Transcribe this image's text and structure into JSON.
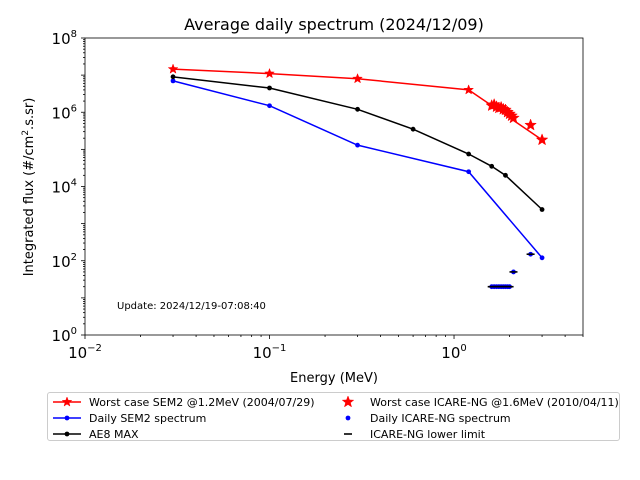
{
  "chart_data": {
    "type": "line",
    "title": "Average daily spectrum (2024/12/09)",
    "xlabel": "Energy (MeV)",
    "ylabel_base": "Integrated flux (#/cm",
    "ylabel_sup": "2",
    "ylabel_tail": ".s.sr)",
    "x_scale": "log",
    "y_scale": "log",
    "xlim": [
      0.01,
      5
    ],
    "ylim": [
      1,
      100000000
    ],
    "x_ticks": [
      {
        "value": 0.01,
        "base": "10",
        "exp": "−2"
      },
      {
        "value": 0.1,
        "base": "10",
        "exp": "−1"
      },
      {
        "value": 1,
        "base": "10",
        "exp": "0"
      }
    ],
    "y_ticks": [
      {
        "value": 1,
        "base": "10",
        "exp": "0"
      },
      {
        "value": 100,
        "base": "10",
        "exp": "2"
      },
      {
        "value": 10000,
        "base": "10",
        "exp": "4"
      },
      {
        "value": 1000000,
        "base": "10",
        "exp": "6"
      },
      {
        "value": 100000000,
        "base": "10",
        "exp": "8"
      }
    ],
    "annotation": "Update: 2024/12/19-07:08:40",
    "legend_position": "below",
    "series": [
      {
        "name": "Worst case SEM2 @1.2MeV (2004/07/29)",
        "color": "#ff0000",
        "marker": "star",
        "line": true,
        "points": [
          [
            0.03,
            14500000
          ],
          [
            0.1,
            11000000
          ],
          [
            0.3,
            8000000
          ],
          [
            1.2,
            4000000
          ],
          [
            3.0,
            180000
          ]
        ]
      },
      {
        "name": "Daily SEM2 spectrum",
        "color": "#0000ff",
        "marker": "dot",
        "line": true,
        "points": [
          [
            0.03,
            7000000
          ],
          [
            0.1,
            1500000
          ],
          [
            0.3,
            130000
          ],
          [
            1.2,
            25000
          ],
          [
            3.0,
            120
          ]
        ]
      },
      {
        "name": "AE8 MAX",
        "color": "#000000",
        "marker": "dot",
        "line": true,
        "points": [
          [
            0.03,
            9000000
          ],
          [
            0.1,
            4500000
          ],
          [
            0.3,
            1200000
          ],
          [
            0.6,
            350000
          ],
          [
            1.2,
            75000
          ],
          [
            1.6,
            35000
          ],
          [
            1.9,
            20000
          ],
          [
            3.0,
            2400
          ]
        ]
      },
      {
        "name": "Worst case ICARE-NG @1.6MeV (2010/04/11)",
        "color": "#ff0000",
        "marker": "star",
        "line": false,
        "points": [
          [
            1.6,
            1500000
          ],
          [
            1.65,
            1600000
          ],
          [
            1.7,
            1400000
          ],
          [
            1.75,
            1300000
          ],
          [
            1.8,
            1350000
          ],
          [
            1.85,
            1200000
          ],
          [
            1.9,
            1150000
          ],
          [
            1.95,
            1000000
          ],
          [
            2.0,
            900000
          ],
          [
            2.05,
            800000
          ],
          [
            2.1,
            700000
          ],
          [
            2.6,
            450000
          ],
          [
            3.0,
            180000
          ]
        ]
      },
      {
        "name": "Daily ICARE-NG spectrum",
        "color": "#0000ff",
        "marker": "dot",
        "line": false,
        "points": [
          [
            1.6,
            20
          ],
          [
            1.65,
            20
          ],
          [
            1.7,
            20
          ],
          [
            1.75,
            20
          ],
          [
            1.8,
            20
          ],
          [
            1.85,
            20
          ],
          [
            1.9,
            20
          ],
          [
            1.95,
            20
          ],
          [
            2.0,
            20
          ],
          [
            2.1,
            50
          ],
          [
            2.6,
            150
          ]
        ]
      },
      {
        "name": "ICARE-NG lower limit",
        "color": "#000000",
        "marker": "hline",
        "line": false,
        "points": [
          [
            1.6,
            20
          ],
          [
            1.65,
            20
          ],
          [
            1.7,
            20
          ],
          [
            1.75,
            20
          ],
          [
            1.8,
            20
          ],
          [
            1.85,
            20
          ],
          [
            1.9,
            20
          ],
          [
            1.95,
            20
          ],
          [
            2.0,
            20
          ],
          [
            2.1,
            50
          ],
          [
            2.6,
            150
          ]
        ]
      }
    ]
  }
}
